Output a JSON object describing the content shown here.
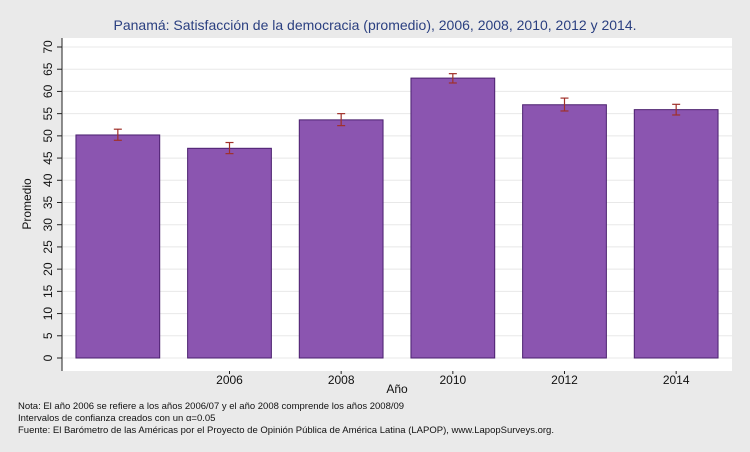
{
  "chart_data": {
    "type": "bar",
    "title": "Panamá: Satisfacción de la democracia (promedio), 2006, 2008, 2010, 2012 y 2014.",
    "xlabel": "Año",
    "ylabel": "Promedio",
    "categories": [
      "",
      "2006",
      "2008",
      "2010",
      "2012",
      "2014"
    ],
    "values": [
      50.2,
      47.2,
      53.6,
      63.0,
      57.0,
      55.9
    ],
    "ci_low": [
      49.0,
      46.0,
      52.3,
      61.9,
      55.6,
      54.7
    ],
    "ci_high": [
      51.5,
      48.5,
      55.0,
      64.0,
      58.5,
      57.1
    ],
    "ylim": [
      0,
      70
    ],
    "yticks": [
      "0",
      "5",
      "10",
      "15",
      "20",
      "25",
      "30",
      "35",
      "40",
      "45",
      "50",
      "55",
      "60",
      "65",
      "70"
    ],
    "grid": true,
    "bar_color": "#8b55b0",
    "bar_edge_color": "#4a1f6e",
    "errorbar_color": "#a0302a",
    "grid_color": "#e8e8e8",
    "plot_background": "#ffffff"
  },
  "notes": {
    "line1": "Nota: El año 2006 se refiere a los años 2006/07 y el año 2008 comprende los años 2008/09",
    "line2": "Intervalos de confianza creados con un α=0.05",
    "line3": "Fuente: El Barómetro de las Américas por el Proyecto de Opinión Pública de América Latina (LAPOP), www.LapopSurveys.org."
  }
}
